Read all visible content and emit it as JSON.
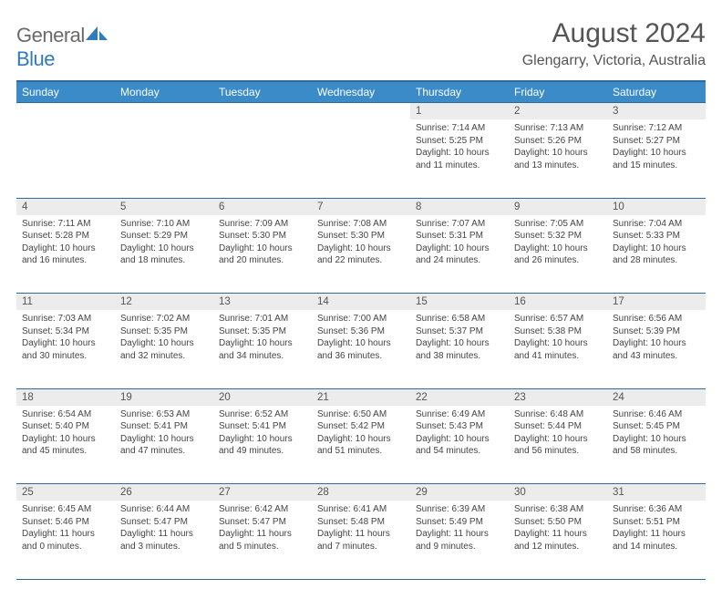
{
  "logo": {
    "word1": "General",
    "word2": "Blue"
  },
  "title": "August 2024",
  "location": "Glengarry, Victoria, Australia",
  "colors": {
    "header_bg": "#3b8bc9",
    "header_border": "#2e6a9e",
    "daynum_bg": "#ececec",
    "text": "#444444",
    "logo_gray": "#6a6a6a",
    "logo_blue": "#2f7bbf"
  },
  "dayHeaders": [
    "Sunday",
    "Monday",
    "Tuesday",
    "Wednesday",
    "Thursday",
    "Friday",
    "Saturday"
  ],
  "weeks": [
    [
      null,
      null,
      null,
      null,
      {
        "n": "1",
        "sr": "Sunrise: 7:14 AM",
        "ss": "Sunset: 5:25 PM",
        "d1": "Daylight: 10 hours",
        "d2": "and 11 minutes."
      },
      {
        "n": "2",
        "sr": "Sunrise: 7:13 AM",
        "ss": "Sunset: 5:26 PM",
        "d1": "Daylight: 10 hours",
        "d2": "and 13 minutes."
      },
      {
        "n": "3",
        "sr": "Sunrise: 7:12 AM",
        "ss": "Sunset: 5:27 PM",
        "d1": "Daylight: 10 hours",
        "d2": "and 15 minutes."
      }
    ],
    [
      {
        "n": "4",
        "sr": "Sunrise: 7:11 AM",
        "ss": "Sunset: 5:28 PM",
        "d1": "Daylight: 10 hours",
        "d2": "and 16 minutes."
      },
      {
        "n": "5",
        "sr": "Sunrise: 7:10 AM",
        "ss": "Sunset: 5:29 PM",
        "d1": "Daylight: 10 hours",
        "d2": "and 18 minutes."
      },
      {
        "n": "6",
        "sr": "Sunrise: 7:09 AM",
        "ss": "Sunset: 5:30 PM",
        "d1": "Daylight: 10 hours",
        "d2": "and 20 minutes."
      },
      {
        "n": "7",
        "sr": "Sunrise: 7:08 AM",
        "ss": "Sunset: 5:30 PM",
        "d1": "Daylight: 10 hours",
        "d2": "and 22 minutes."
      },
      {
        "n": "8",
        "sr": "Sunrise: 7:07 AM",
        "ss": "Sunset: 5:31 PM",
        "d1": "Daylight: 10 hours",
        "d2": "and 24 minutes."
      },
      {
        "n": "9",
        "sr": "Sunrise: 7:05 AM",
        "ss": "Sunset: 5:32 PM",
        "d1": "Daylight: 10 hours",
        "d2": "and 26 minutes."
      },
      {
        "n": "10",
        "sr": "Sunrise: 7:04 AM",
        "ss": "Sunset: 5:33 PM",
        "d1": "Daylight: 10 hours",
        "d2": "and 28 minutes."
      }
    ],
    [
      {
        "n": "11",
        "sr": "Sunrise: 7:03 AM",
        "ss": "Sunset: 5:34 PM",
        "d1": "Daylight: 10 hours",
        "d2": "and 30 minutes."
      },
      {
        "n": "12",
        "sr": "Sunrise: 7:02 AM",
        "ss": "Sunset: 5:35 PM",
        "d1": "Daylight: 10 hours",
        "d2": "and 32 minutes."
      },
      {
        "n": "13",
        "sr": "Sunrise: 7:01 AM",
        "ss": "Sunset: 5:35 PM",
        "d1": "Daylight: 10 hours",
        "d2": "and 34 minutes."
      },
      {
        "n": "14",
        "sr": "Sunrise: 7:00 AM",
        "ss": "Sunset: 5:36 PM",
        "d1": "Daylight: 10 hours",
        "d2": "and 36 minutes."
      },
      {
        "n": "15",
        "sr": "Sunrise: 6:58 AM",
        "ss": "Sunset: 5:37 PM",
        "d1": "Daylight: 10 hours",
        "d2": "and 38 minutes."
      },
      {
        "n": "16",
        "sr": "Sunrise: 6:57 AM",
        "ss": "Sunset: 5:38 PM",
        "d1": "Daylight: 10 hours",
        "d2": "and 41 minutes."
      },
      {
        "n": "17",
        "sr": "Sunrise: 6:56 AM",
        "ss": "Sunset: 5:39 PM",
        "d1": "Daylight: 10 hours",
        "d2": "and 43 minutes."
      }
    ],
    [
      {
        "n": "18",
        "sr": "Sunrise: 6:54 AM",
        "ss": "Sunset: 5:40 PM",
        "d1": "Daylight: 10 hours",
        "d2": "and 45 minutes."
      },
      {
        "n": "19",
        "sr": "Sunrise: 6:53 AM",
        "ss": "Sunset: 5:41 PM",
        "d1": "Daylight: 10 hours",
        "d2": "and 47 minutes."
      },
      {
        "n": "20",
        "sr": "Sunrise: 6:52 AM",
        "ss": "Sunset: 5:41 PM",
        "d1": "Daylight: 10 hours",
        "d2": "and 49 minutes."
      },
      {
        "n": "21",
        "sr": "Sunrise: 6:50 AM",
        "ss": "Sunset: 5:42 PM",
        "d1": "Daylight: 10 hours",
        "d2": "and 51 minutes."
      },
      {
        "n": "22",
        "sr": "Sunrise: 6:49 AM",
        "ss": "Sunset: 5:43 PM",
        "d1": "Daylight: 10 hours",
        "d2": "and 54 minutes."
      },
      {
        "n": "23",
        "sr": "Sunrise: 6:48 AM",
        "ss": "Sunset: 5:44 PM",
        "d1": "Daylight: 10 hours",
        "d2": "and 56 minutes."
      },
      {
        "n": "24",
        "sr": "Sunrise: 6:46 AM",
        "ss": "Sunset: 5:45 PM",
        "d1": "Daylight: 10 hours",
        "d2": "and 58 minutes."
      }
    ],
    [
      {
        "n": "25",
        "sr": "Sunrise: 6:45 AM",
        "ss": "Sunset: 5:46 PM",
        "d1": "Daylight: 11 hours",
        "d2": "and 0 minutes."
      },
      {
        "n": "26",
        "sr": "Sunrise: 6:44 AM",
        "ss": "Sunset: 5:47 PM",
        "d1": "Daylight: 11 hours",
        "d2": "and 3 minutes."
      },
      {
        "n": "27",
        "sr": "Sunrise: 6:42 AM",
        "ss": "Sunset: 5:47 PM",
        "d1": "Daylight: 11 hours",
        "d2": "and 5 minutes."
      },
      {
        "n": "28",
        "sr": "Sunrise: 6:41 AM",
        "ss": "Sunset: 5:48 PM",
        "d1": "Daylight: 11 hours",
        "d2": "and 7 minutes."
      },
      {
        "n": "29",
        "sr": "Sunrise: 6:39 AM",
        "ss": "Sunset: 5:49 PM",
        "d1": "Daylight: 11 hours",
        "d2": "and 9 minutes."
      },
      {
        "n": "30",
        "sr": "Sunrise: 6:38 AM",
        "ss": "Sunset: 5:50 PM",
        "d1": "Daylight: 11 hours",
        "d2": "and 12 minutes."
      },
      {
        "n": "31",
        "sr": "Sunrise: 6:36 AM",
        "ss": "Sunset: 5:51 PM",
        "d1": "Daylight: 11 hours",
        "d2": "and 14 minutes."
      }
    ]
  ]
}
